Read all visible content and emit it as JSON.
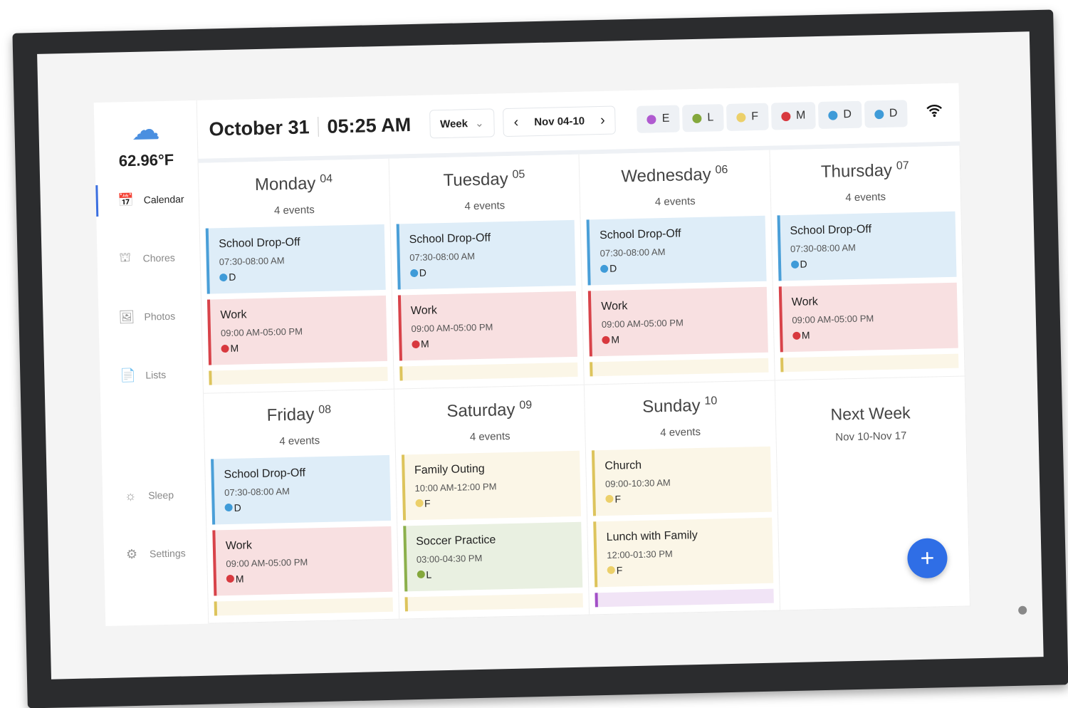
{
  "weather": {
    "icon": "cloud-icon",
    "temperature": "62.96°F"
  },
  "sidebar": {
    "items": [
      {
        "label": "Calendar",
        "icon": "calendar-icon",
        "glyph": "📅",
        "active": true
      },
      {
        "label": "Chores",
        "icon": "chores-icon",
        "glyph": "⛫"
      },
      {
        "label": "Photos",
        "icon": "photos-icon",
        "glyph": "🖼"
      },
      {
        "label": "Lists",
        "icon": "list-icon",
        "glyph": "📄"
      }
    ],
    "bottom": [
      {
        "label": "Sleep",
        "icon": "sun-icon",
        "glyph": "☼"
      },
      {
        "label": "Settings",
        "icon": "gear-icon",
        "glyph": "⚙"
      }
    ]
  },
  "header": {
    "date": "October 31",
    "time": "05:25 AM",
    "view": "Week",
    "range": "Nov 04-10",
    "members": [
      {
        "initial": "E",
        "color": "#b05ad0"
      },
      {
        "initial": "L",
        "color": "#84a83c"
      },
      {
        "initial": "F",
        "color": "#ecd06a"
      },
      {
        "initial": "M",
        "color": "#d8393f"
      },
      {
        "initial": "D",
        "color": "#3f9bd8"
      },
      {
        "initial": "D",
        "color": "#3f9bd8"
      }
    ]
  },
  "colors": {
    "blue": {
      "bg": "#deedf8",
      "border": "#4a9fd8"
    },
    "red": {
      "bg": "#f8e0e1",
      "border": "#d8434a"
    },
    "yellow": {
      "bg": "#fbf6e7",
      "border": "#ddc45c"
    },
    "green": {
      "bg": "#e9f0e1",
      "border": "#8cb04c"
    },
    "purple": {
      "bg": "#f1e4f6",
      "border": "#a24fc7"
    },
    "accent": "#2f6ee6"
  },
  "days": [
    {
      "name": "Monday",
      "num": "04",
      "count": "4 events",
      "peek": "yellow",
      "events": [
        {
          "title": "School Drop-Off",
          "time": "07:30-08:00 AM",
          "who": "D",
          "color": "blue",
          "dot": "#3f9bd8"
        },
        {
          "title": "Work",
          "time": "09:00 AM-05:00 PM",
          "who": "M",
          "color": "red",
          "dot": "#d8393f"
        }
      ]
    },
    {
      "name": "Tuesday",
      "num": "05",
      "count": "4 events",
      "peek": "yellow",
      "events": [
        {
          "title": "School Drop-Off",
          "time": "07:30-08:00 AM",
          "who": "D",
          "color": "blue",
          "dot": "#3f9bd8"
        },
        {
          "title": "Work",
          "time": "09:00 AM-05:00 PM",
          "who": "M",
          "color": "red",
          "dot": "#d8393f"
        }
      ]
    },
    {
      "name": "Wednesday",
      "num": "06",
      "count": "4 events",
      "peek": "yellow",
      "events": [
        {
          "title": "School Drop-Off",
          "time": "07:30-08:00 AM",
          "who": "D",
          "color": "blue",
          "dot": "#3f9bd8"
        },
        {
          "title": "Work",
          "time": "09:00 AM-05:00 PM",
          "who": "M",
          "color": "red",
          "dot": "#d8393f"
        }
      ]
    },
    {
      "name": "Thursday",
      "num": "07",
      "count": "4 events",
      "peek": "yellow",
      "events": [
        {
          "title": "School Drop-Off",
          "time": "07:30-08:00 AM",
          "who": "D",
          "color": "blue",
          "dot": "#3f9bd8"
        },
        {
          "title": "Work",
          "time": "09:00 AM-05:00 PM",
          "who": "M",
          "color": "red",
          "dot": "#d8393f"
        }
      ]
    },
    {
      "name": "Friday",
      "num": "08",
      "count": "4 events",
      "peek": "yellow",
      "events": [
        {
          "title": "School Drop-Off",
          "time": "07:30-08:00 AM",
          "who": "D",
          "color": "blue",
          "dot": "#3f9bd8"
        },
        {
          "title": "Work",
          "time": "09:00 AM-05:00 PM",
          "who": "M",
          "color": "red",
          "dot": "#d8393f"
        }
      ]
    },
    {
      "name": "Saturday",
      "num": "09",
      "count": "4 events",
      "peek": "yellow",
      "events": [
        {
          "title": "Family Outing",
          "time": "10:00 AM-12:00 PM",
          "who": "F",
          "color": "yellow",
          "dot": "#ecd06a"
        },
        {
          "title": "Soccer Practice",
          "time": "03:00-04:30 PM",
          "who": "L",
          "color": "green",
          "dot": "#84a83c"
        }
      ]
    },
    {
      "name": "Sunday",
      "num": "10",
      "count": "4 events",
      "peek": "purple",
      "events": [
        {
          "title": "Church",
          "time": "09:00-10:30 AM",
          "who": "F",
          "color": "yellow",
          "dot": "#ecd06a"
        },
        {
          "title": "Lunch with Family",
          "time": "12:00-01:30 PM",
          "who": "F",
          "color": "yellow",
          "dot": "#ecd06a"
        }
      ]
    }
  ],
  "next_week": {
    "title": "Next Week",
    "range": "Nov 10-Nov 17"
  },
  "fab": "+"
}
